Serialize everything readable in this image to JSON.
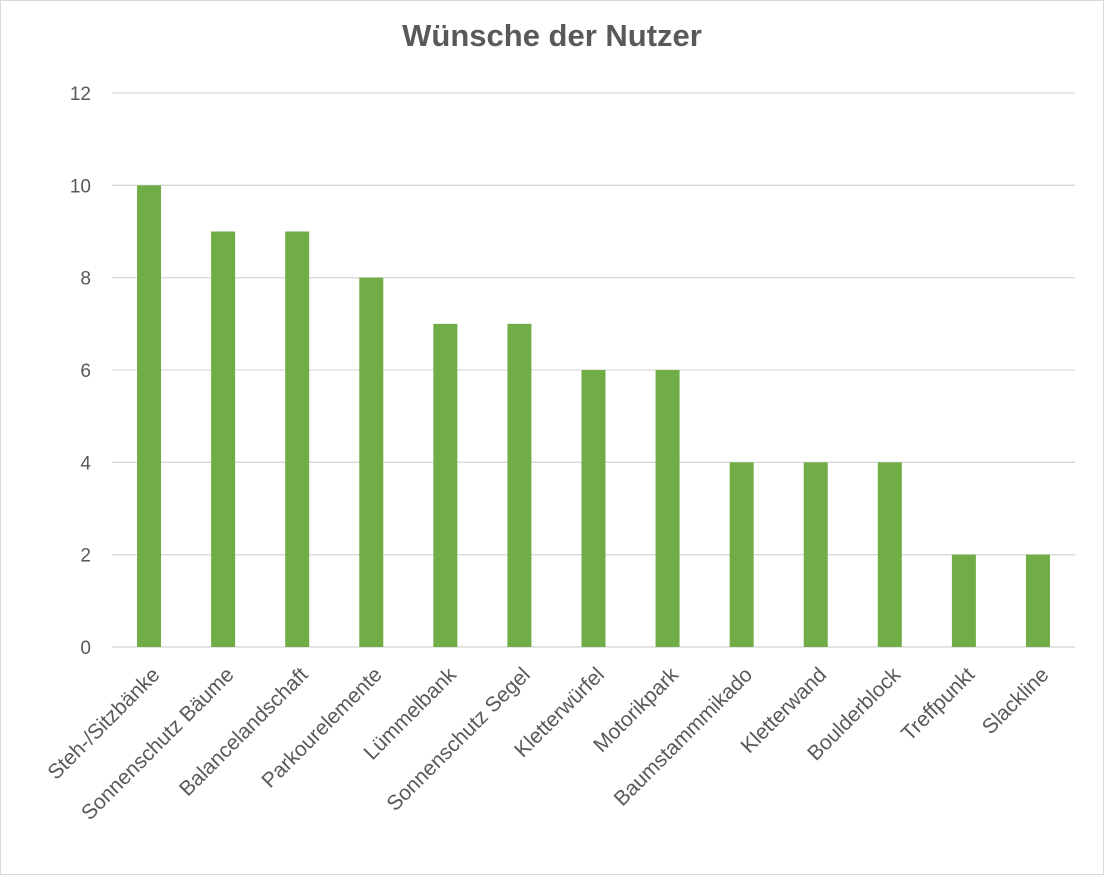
{
  "chart_data": {
    "type": "bar",
    "title": "Wünsche der Nutzer",
    "xlabel": "",
    "ylabel": "",
    "categories": [
      "Steh-/Sitzbänke",
      "Sonnenschutz Bäume",
      "Balancelandschaft",
      "Parkourelemente",
      "Lümmelbank",
      "Sonnenschutz Segel",
      "Kletterwürfel",
      "Motorikpark",
      "Baumstammmikado",
      "Kletterwand",
      "Boulderblock",
      "Treffpunkt",
      "Slackline"
    ],
    "values": [
      10,
      9,
      9,
      8,
      7,
      7,
      6,
      6,
      4,
      4,
      4,
      2,
      2
    ],
    "ylim": [
      0,
      12
    ],
    "yticks": [
      "0",
      "2",
      "4",
      "6",
      "8",
      "10",
      "12"
    ],
    "grid": true,
    "legend": "none",
    "colors": {
      "bar": "#70ad47",
      "grid": "#d9d9d9",
      "text": "#595959"
    }
  }
}
